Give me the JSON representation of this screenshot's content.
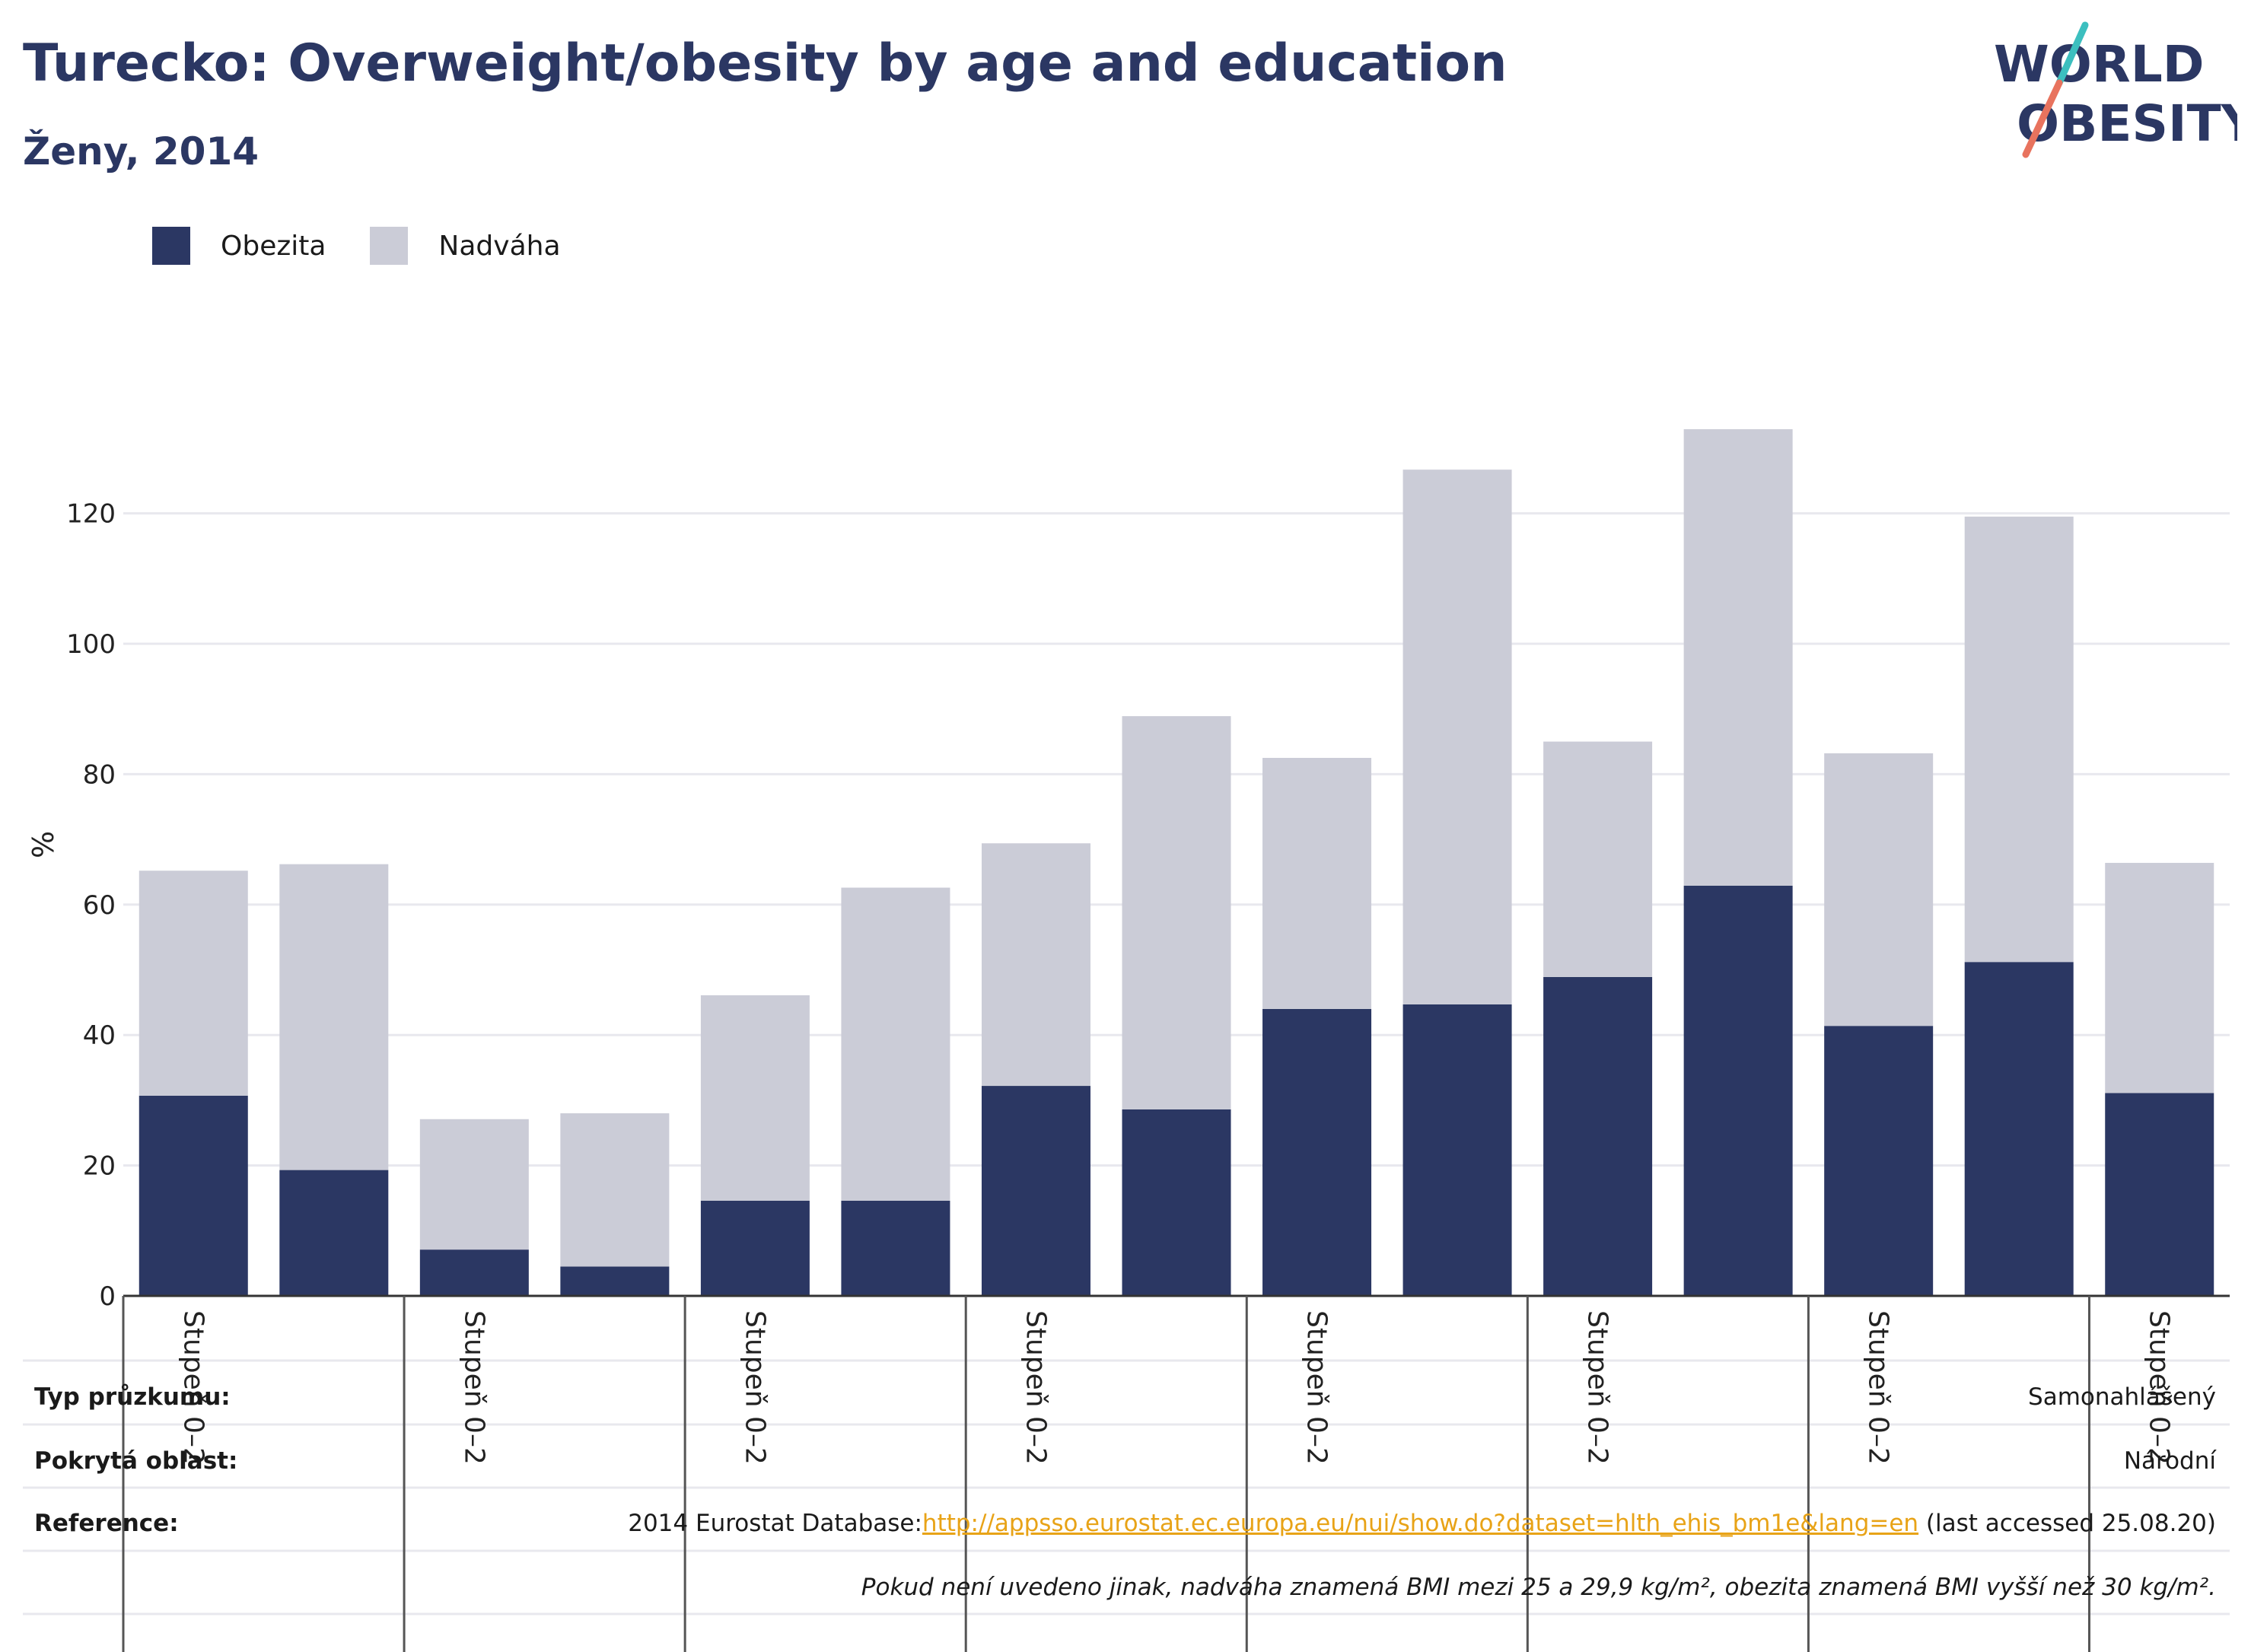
{
  "header": {
    "title": "Turecko: Overweight/obesity by age and education",
    "subtitle": "Ženy, 2014"
  },
  "logo": {
    "line1": "WORLD",
    "line2": "OBESITY"
  },
  "colors": {
    "obesity": "#2b3763",
    "overweight": "#cbccd7",
    "grid": "#e8e8ee",
    "axis": "#333333",
    "link": "#e8a317",
    "logo_teal": "#3cbfbf",
    "logo_coral": "#e8735e"
  },
  "chart_data": {
    "type": "bar",
    "stacked": true,
    "ylabel": "%",
    "ylim": [
      0,
      140
    ],
    "yticks": [
      0,
      20,
      40,
      60,
      80,
      100,
      120
    ],
    "grid": true,
    "legend_position": "top-left",
    "categories": [
      "Stupeň 0–2",
      "",
      "Stupeň 0–2",
      "",
      "Stupeň 0–2",
      "",
      "Stupeň 0–2",
      "",
      "Stupeň 0–2",
      "",
      "Stupeň 0–2",
      "",
      "Stupeň 0–2",
      "",
      "Stupeň 0–2"
    ],
    "series": [
      {
        "name": "Obezita",
        "values": [
          30.7,
          19.3,
          7.1,
          4.5,
          14.6,
          14.6,
          32.2,
          28.6,
          44.0,
          44.7,
          48.9,
          62.9,
          41.4,
          51.2,
          31.1
        ]
      },
      {
        "name": "Nadváha",
        "values": [
          34.5,
          46.9,
          20.0,
          23.5,
          31.5,
          48.0,
          37.2,
          60.3,
          38.5,
          82.0,
          36.1,
          70.0,
          41.8,
          68.3,
          35.3
        ]
      }
    ]
  },
  "footer": {
    "survey_type_label": "Typ průzkumu:",
    "survey_type_value": "Samonahlášený",
    "coverage_label": "Pokrytá oblast:",
    "coverage_value": "Národní",
    "reference_label": "Reference:",
    "reference_prefix": "2014 Eurostat Database:",
    "reference_url": "http://appsso.eurostat.ec.europa.eu/nui/show.do?dataset=hlth_ehis_bm1e&lang=en",
    "reference_suffix": " (last accessed 25.08.20)",
    "note": "Pokud není uvedeno jinak, nadváha znamená BMI mezi 25 a 29,9 kg/m², obezita znamená BMI vyšší než 30 kg/m²."
  }
}
